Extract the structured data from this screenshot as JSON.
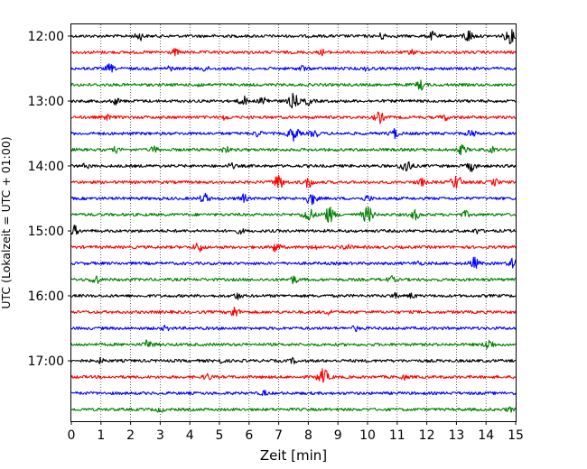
{
  "chart_data": {
    "type": "line",
    "title": "",
    "xlabel": "Zeit  [min]",
    "ylabel": "UTC (Lokalzeit = UTC + 01:00)",
    "xlim": [
      0,
      15
    ],
    "x_ticks": [
      "0",
      "1",
      "2",
      "3",
      "4",
      "5",
      "6",
      "7",
      "8",
      "9",
      "10",
      "11",
      "12",
      "13",
      "14",
      "15"
    ],
    "y_ticks": [
      {
        "label": "12:00",
        "row": 0
      },
      {
        "label": "13:00",
        "row": 4
      },
      {
        "label": "14:00",
        "row": 8
      },
      {
        "label": "15:00",
        "row": 12
      },
      {
        "label": "16:00",
        "row": 16
      },
      {
        "label": "17:00",
        "row": 20
      }
    ],
    "grid": "vertical dotted lines at each minute",
    "trace_interval_minutes": 15,
    "colors": [
      "#000000",
      "#ff0000",
      "#0000ff",
      "#008000"
    ],
    "series": [
      {
        "start": "12:00",
        "bursts": [
          {
            "t": 2.3,
            "a": 0.5
          },
          {
            "t": 10.5,
            "a": 0.4
          },
          {
            "t": 12.2,
            "a": 0.5
          },
          {
            "t": 13.4,
            "a": 0.8
          },
          {
            "t": 14.8,
            "a": 0.9
          }
        ]
      },
      {
        "start": "12:15",
        "bursts": [
          {
            "t": 3.5,
            "a": 0.4
          },
          {
            "t": 8.5,
            "a": 0.35
          },
          {
            "t": 11.5,
            "a": 0.3
          }
        ]
      },
      {
        "start": "12:30",
        "bursts": [
          {
            "t": 1.3,
            "a": 0.5
          },
          {
            "t": 3.3,
            "a": 0.3
          },
          {
            "t": 4.5,
            "a": 0.3
          },
          {
            "t": 7.8,
            "a": 0.35
          },
          {
            "t": 10.0,
            "a": 0.3
          }
        ]
      },
      {
        "start": "12:45",
        "bursts": [
          {
            "t": 4.3,
            "a": 0.3
          },
          {
            "t": 11.8,
            "a": 0.6
          }
        ]
      },
      {
        "start": "13:00",
        "bursts": [
          {
            "t": 1.5,
            "a": 0.4
          },
          {
            "t": 5.8,
            "a": 0.6
          },
          {
            "t": 6.5,
            "a": 0.6
          },
          {
            "t": 7.5,
            "a": 0.9
          },
          {
            "t": 8.0,
            "a": 0.5
          }
        ]
      },
      {
        "start": "13:15",
        "bursts": [
          {
            "t": 1.2,
            "a": 0.3
          },
          {
            "t": 5.2,
            "a": 0.3
          },
          {
            "t": 10.4,
            "a": 0.7
          },
          {
            "t": 12.6,
            "a": 0.4
          }
        ]
      },
      {
        "start": "13:30",
        "bursts": [
          {
            "t": 6.3,
            "a": 0.4
          },
          {
            "t": 7.5,
            "a": 0.9
          },
          {
            "t": 8.2,
            "a": 0.5
          },
          {
            "t": 10.9,
            "a": 0.6
          },
          {
            "t": 13.5,
            "a": 0.5
          }
        ]
      },
      {
        "start": "13:45",
        "bursts": [
          {
            "t": 1.5,
            "a": 0.3
          },
          {
            "t": 2.8,
            "a": 0.4
          },
          {
            "t": 5.2,
            "a": 0.4
          },
          {
            "t": 13.2,
            "a": 0.6
          },
          {
            "t": 14.2,
            "a": 0.3
          }
        ]
      },
      {
        "start": "14:00",
        "bursts": [
          {
            "t": 0.5,
            "a": 0.3
          },
          {
            "t": 5.4,
            "a": 0.3
          },
          {
            "t": 11.3,
            "a": 0.9
          },
          {
            "t": 13.5,
            "a": 0.6
          }
        ]
      },
      {
        "start": "14:15",
        "bursts": [
          {
            "t": 7.0,
            "a": 0.9
          },
          {
            "t": 8.0,
            "a": 0.7
          },
          {
            "t": 11.8,
            "a": 0.5
          },
          {
            "t": 13.0,
            "a": 0.9
          },
          {
            "t": 14.3,
            "a": 0.4
          }
        ]
      },
      {
        "start": "14:30",
        "bursts": [
          {
            "t": 4.5,
            "a": 0.6
          },
          {
            "t": 5.8,
            "a": 0.5
          },
          {
            "t": 8.1,
            "a": 0.8
          },
          {
            "t": 10.0,
            "a": 0.4
          }
        ]
      },
      {
        "start": "14:45",
        "bursts": [
          {
            "t": 8.0,
            "a": 0.9
          },
          {
            "t": 8.7,
            "a": 1.0
          },
          {
            "t": 10.0,
            "a": 1.0
          },
          {
            "t": 11.6,
            "a": 0.6
          },
          {
            "t": 13.3,
            "a": 0.4
          }
        ]
      },
      {
        "start": "15:00",
        "bursts": [
          {
            "t": 0.1,
            "a": 0.6
          },
          {
            "t": 5.7,
            "a": 0.3
          },
          {
            "t": 13.7,
            "a": 0.3
          }
        ]
      },
      {
        "start": "15:15",
        "bursts": [
          {
            "t": 4.3,
            "a": 0.6
          },
          {
            "t": 6.9,
            "a": 0.6
          },
          {
            "t": 8.2,
            "a": 0.3
          },
          {
            "t": 9.3,
            "a": 0.4
          }
        ]
      },
      {
        "start": "15:30",
        "bursts": [
          {
            "t": 11.7,
            "a": 0.3
          },
          {
            "t": 13.6,
            "a": 0.7
          },
          {
            "t": 14.9,
            "a": 0.6
          }
        ]
      },
      {
        "start": "15:45",
        "bursts": [
          {
            "t": 0.8,
            "a": 0.6
          },
          {
            "t": 7.5,
            "a": 0.5
          },
          {
            "t": 10.8,
            "a": 0.4
          }
        ]
      },
      {
        "start": "16:00",
        "bursts": [
          {
            "t": 5.6,
            "a": 0.4
          },
          {
            "t": 10.9,
            "a": 0.3
          },
          {
            "t": 11.5,
            "a": 0.3
          }
        ]
      },
      {
        "start": "16:15",
        "bursts": [
          {
            "t": 5.5,
            "a": 0.7
          },
          {
            "t": 8.7,
            "a": 0.3
          }
        ]
      },
      {
        "start": "16:30",
        "bursts": [
          {
            "t": 3.2,
            "a": 0.3
          },
          {
            "t": 9.6,
            "a": 0.3
          }
        ]
      },
      {
        "start": "16:45",
        "bursts": [
          {
            "t": 2.6,
            "a": 0.6
          },
          {
            "t": 14.1,
            "a": 0.7
          }
        ]
      },
      {
        "start": "17:00",
        "bursts": [
          {
            "t": 1.0,
            "a": 0.3
          },
          {
            "t": 5.0,
            "a": 0.3
          },
          {
            "t": 7.5,
            "a": 0.3
          }
        ]
      },
      {
        "start": "17:15",
        "bursts": [
          {
            "t": 4.6,
            "a": 0.4
          },
          {
            "t": 8.5,
            "a": 1.0
          },
          {
            "t": 11.2,
            "a": 0.3
          }
        ]
      },
      {
        "start": "17:30",
        "bursts": [
          {
            "t": 6.5,
            "a": 0.3
          }
        ]
      },
      {
        "start": "17:45",
        "bursts": [
          {
            "t": 3.0,
            "a": 0.3
          },
          {
            "t": 14.8,
            "a": 0.3
          }
        ]
      }
    ]
  }
}
